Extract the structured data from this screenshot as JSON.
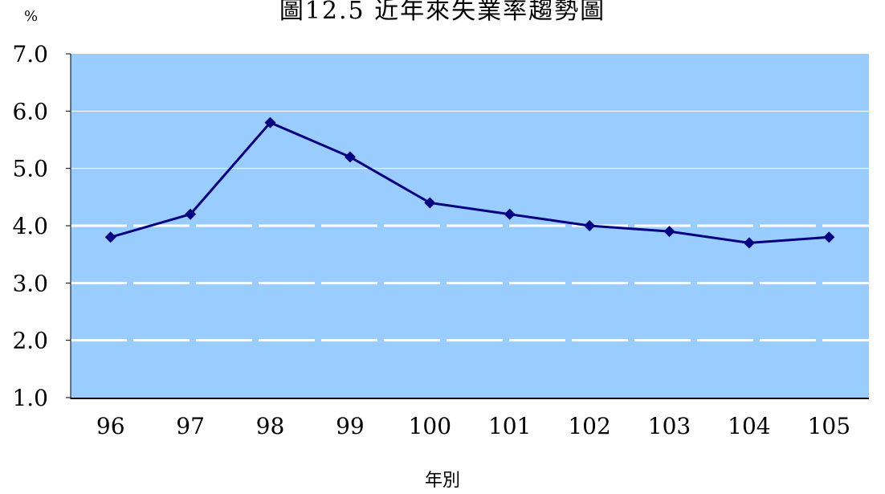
{
  "chart_data": {
    "type": "line",
    "title": "圖12.5 近年來失業率趨勢圖",
    "y_unit": "%",
    "xlabel": "年別",
    "ylabel": "",
    "categories": [
      "96",
      "97",
      "98",
      "99",
      "100",
      "101",
      "102",
      "103",
      "104",
      "105"
    ],
    "series": [
      {
        "values": [
          3.8,
          4.2,
          5.8,
          5.2,
          4.4,
          4.2,
          4.0,
          3.9,
          3.7,
          3.8
        ]
      }
    ],
    "ylim": [
      1.0,
      7.0
    ],
    "yticks": [
      "1.0",
      "2.0",
      "3.0",
      "4.0",
      "5.0",
      "6.0",
      "7.0"
    ],
    "grid": true,
    "colors": {
      "plot_background": "#99CCFF",
      "line": "#000080",
      "gridline": "#ffffff"
    }
  }
}
